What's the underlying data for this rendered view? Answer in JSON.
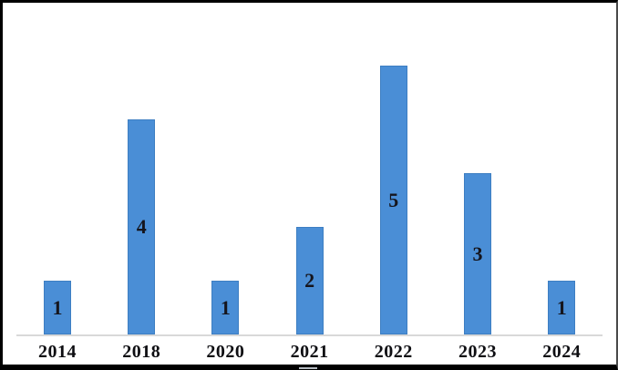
{
  "chart_data": {
    "type": "bar",
    "categories": [
      "2014",
      "2018",
      "2020",
      "2021",
      "2022",
      "2023",
      "2024"
    ],
    "values": [
      1,
      4,
      1,
      2,
      5,
      3,
      1
    ],
    "title": "",
    "xlabel": "",
    "ylabel": "",
    "ylim": [
      0,
      5.5
    ],
    "grid": false,
    "y_axis_visible": false,
    "data_labels": {
      "position": "center",
      "values": [
        "1",
        "4",
        "1",
        "2",
        "5",
        "3",
        "1"
      ]
    },
    "legend": "marker fragment cropped at bottom edge",
    "colors": {
      "bar": "#4a8ed6",
      "bar_edge": "#3d7ec2",
      "data_label": "#15151d",
      "axis_label": "#0e0e12",
      "axis_line": "#d9d9d9",
      "frame_border": "#000000",
      "legend_fragment": "#b4bac1",
      "background": "#ffffff"
    }
  }
}
